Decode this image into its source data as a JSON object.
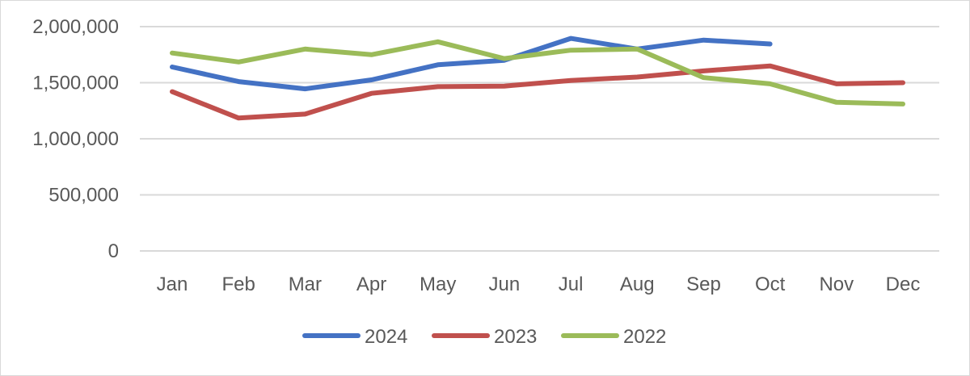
{
  "chart_data": {
    "type": "line",
    "categories": [
      "Jan",
      "Feb",
      "Mar",
      "Apr",
      "May",
      "Jun",
      "Jul",
      "Aug",
      "Sep",
      "Oct",
      "Nov",
      "Dec"
    ],
    "ylim": [
      0,
      2000000
    ],
    "yticks": [
      0,
      500000,
      1000000,
      1500000,
      2000000
    ],
    "ytick_labels": [
      "0",
      "500,000",
      "1,000,000",
      "1,500,000",
      "2,000,000"
    ],
    "grid": true,
    "legend_position": "bottom",
    "series": [
      {
        "name": "2024",
        "color": "#4472c4",
        "values": [
          1640000,
          1510000,
          1445000,
          1525000,
          1660000,
          1700000,
          1895000,
          1800000,
          1880000,
          1845000,
          null,
          null
        ]
      },
      {
        "name": "2023",
        "color": "#c0504d",
        "values": [
          1420000,
          1185000,
          1220000,
          1405000,
          1465000,
          1470000,
          1520000,
          1550000,
          1605000,
          1650000,
          1490000,
          1500000
        ]
      },
      {
        "name": "2022",
        "color": "#9bbb59",
        "values": [
          1765000,
          1685000,
          1800000,
          1750000,
          1865000,
          1715000,
          1790000,
          1800000,
          1545000,
          1490000,
          1325000,
          1310000
        ]
      }
    ]
  }
}
